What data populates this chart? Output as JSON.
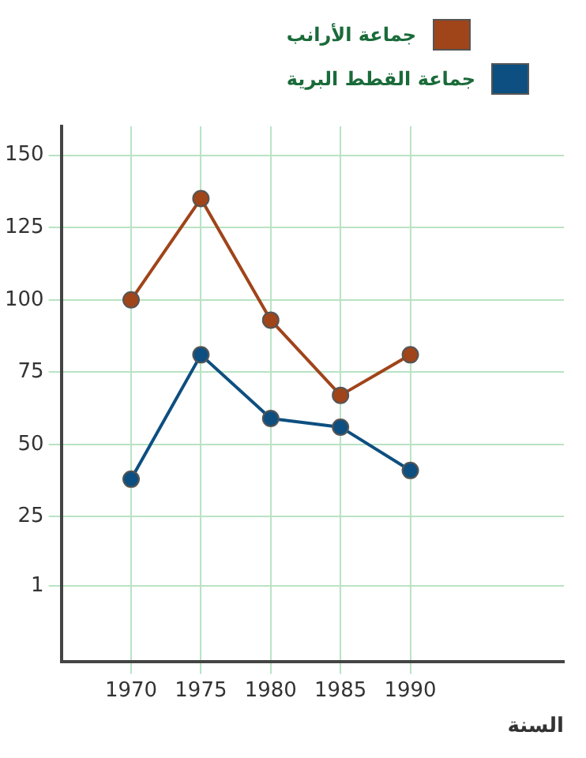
{
  "chart_data": {
    "type": "line",
    "x": [
      1970,
      1975,
      1980,
      1985,
      1990
    ],
    "series": [
      {
        "name": "جماعة الأرانب",
        "color": "#a0441a",
        "values": [
          100,
          135,
          93,
          67,
          81
        ]
      },
      {
        "name": "جماعة القطط البرية",
        "color": "#0d4f80",
        "values": [
          38,
          81,
          59,
          56,
          41
        ]
      }
    ],
    "xlabel": "السنة",
    "xlim": [
      1965,
      2001
    ],
    "xticks": [
      1970,
      1975,
      1980,
      1985,
      1990
    ],
    "ylim": [
      -25,
      160
    ],
    "yticks": [
      1,
      25,
      50,
      75,
      100,
      125,
      150
    ],
    "grid": true,
    "legend": "top right",
    "marker": "circle",
    "line_style": "solid"
  }
}
